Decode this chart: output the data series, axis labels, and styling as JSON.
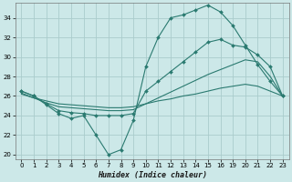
{
  "xlabel": "Humidex (Indice chaleur)",
  "bg_color": "#cce8e8",
  "grid_color": "#aacccc",
  "line_color": "#2a7a70",
  "ylim": [
    19.5,
    35.5
  ],
  "yticks": [
    20,
    22,
    24,
    26,
    28,
    30,
    32,
    34
  ],
  "xtick_labels": [
    "0",
    "1",
    "2",
    "3",
    "4",
    "5",
    "6",
    "7",
    "8",
    "9",
    "10",
    "11",
    "12",
    "13",
    "14",
    "15",
    "16",
    "19",
    "20",
    "21",
    "22",
    "23"
  ],
  "line1_x": [
    0,
    1,
    2,
    3,
    4,
    5,
    6,
    7,
    8,
    9,
    10,
    11,
    12,
    13,
    14,
    15,
    16,
    17,
    18,
    19,
    20,
    21
  ],
  "line1_y": [
    26.5,
    26.0,
    25.1,
    24.2,
    23.7,
    24.0,
    22.0,
    20.0,
    20.5,
    23.5,
    29.0,
    32.0,
    34.0,
    34.3,
    34.8,
    35.3,
    34.6,
    33.2,
    31.2,
    29.2,
    27.5,
    26.0
  ],
  "line2_x": [
    0,
    1,
    2,
    3,
    4,
    5,
    6,
    7,
    8,
    9,
    10,
    11,
    12,
    13,
    14,
    15,
    16,
    17,
    18,
    19,
    20,
    21
  ],
  "line2_y": [
    26.5,
    26.0,
    25.2,
    24.5,
    24.3,
    24.2,
    24.0,
    24.0,
    24.0,
    24.2,
    26.5,
    27.5,
    28.5,
    29.5,
    30.5,
    31.5,
    31.8,
    31.2,
    31.0,
    30.2,
    29.0,
    26.0
  ],
  "line3_x": [
    0,
    1,
    2,
    3,
    4,
    5,
    6,
    7,
    8,
    9,
    10,
    11,
    12,
    13,
    14,
    15,
    16,
    17,
    18,
    19,
    20,
    21
  ],
  "line3_y": [
    26.3,
    25.8,
    25.3,
    24.9,
    24.8,
    24.7,
    24.6,
    24.5,
    24.5,
    24.6,
    25.2,
    25.8,
    26.4,
    27.0,
    27.6,
    28.2,
    28.7,
    29.2,
    29.7,
    29.5,
    28.0,
    26.0
  ],
  "line4_x": [
    0,
    1,
    2,
    3,
    4,
    5,
    6,
    7,
    8,
    9,
    10,
    11,
    12,
    13,
    14,
    15,
    16,
    17,
    18,
    19,
    20,
    21
  ],
  "line4_y": [
    26.2,
    25.8,
    25.5,
    25.2,
    25.1,
    25.0,
    24.9,
    24.8,
    24.8,
    24.9,
    25.2,
    25.5,
    25.7,
    26.0,
    26.2,
    26.5,
    26.8,
    27.0,
    27.2,
    27.0,
    26.5,
    26.0
  ]
}
